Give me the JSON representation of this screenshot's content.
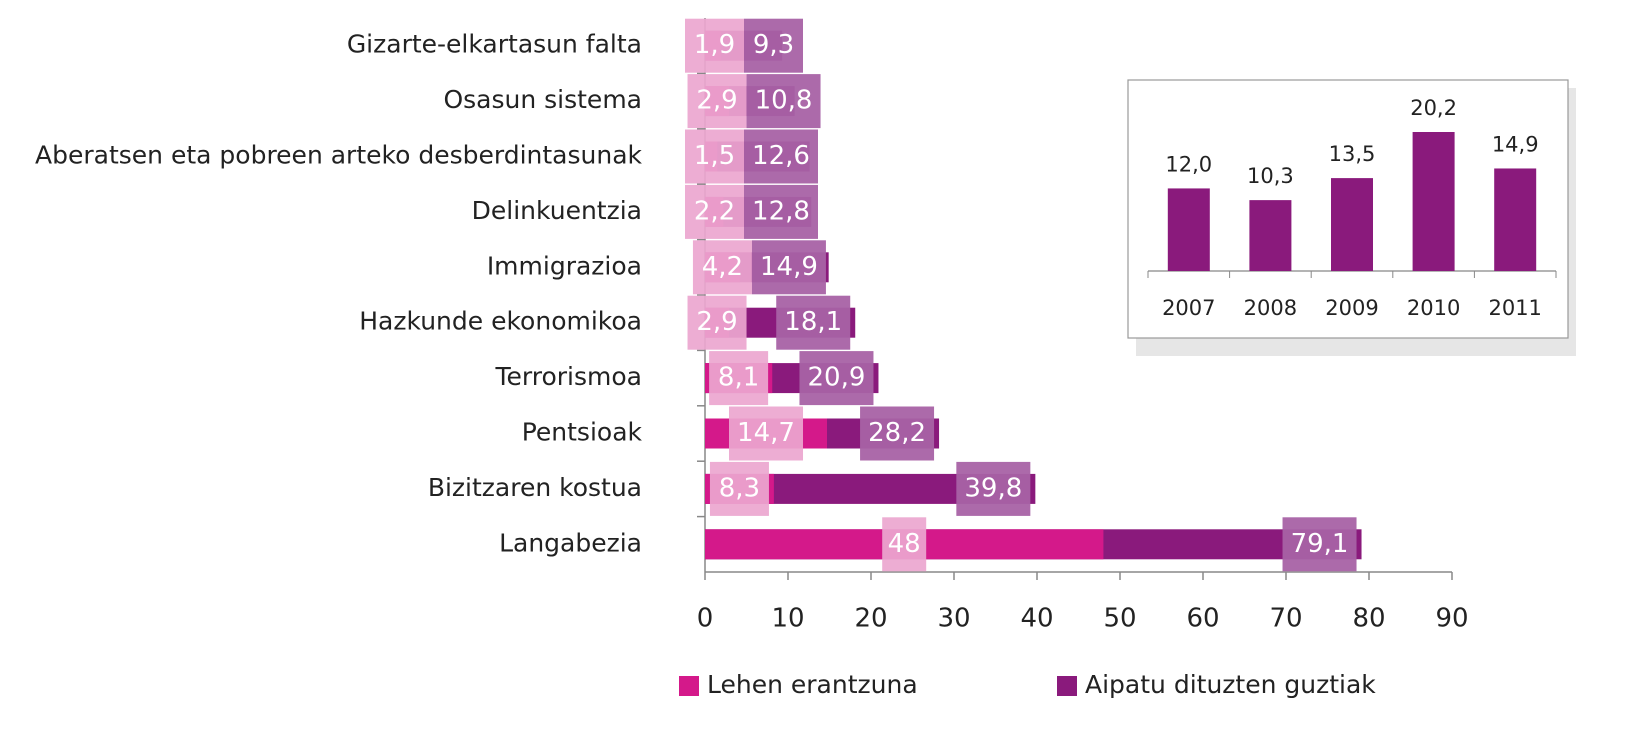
{
  "chart_data": [
    {
      "type": "bar",
      "orientation": "horizontal",
      "categories": [
        "Gizarte-elkartasun falta",
        "Osasun sistema",
        "Aberatsen eta pobreen arteko desberdintasunak",
        "Delinkuentzia",
        "Immigrazioa",
        "Hazkunde ekonomikoa",
        "Terrorismoa",
        "Pentsioak",
        "Bizitzaren kostua",
        "Langabezia"
      ],
      "series": [
        {
          "name": "Lehen erantzuna",
          "color": "#d4198a",
          "values": [
            1.9,
            2.9,
            1.5,
            2.2,
            4.2,
            2.9,
            8.1,
            14.7,
            8.3,
            48
          ],
          "value_labels": [
            "1,9",
            "2,9",
            "1,5",
            "2,2",
            "4,2",
            "2,9",
            "8,1",
            "14,7",
            "8,3",
            "48"
          ]
        },
        {
          "name": "Aipatu dituzten guztiak",
          "color": "#8a1a7c",
          "values": [
            9.3,
            10.8,
            12.6,
            12.8,
            14.9,
            18.1,
            20.9,
            28.2,
            39.8,
            79.1
          ],
          "value_labels": [
            "9,3",
            "10,8",
            "12,6",
            "12,8",
            "14,9",
            "18,1",
            "20,9",
            "28,2",
            "39,8",
            "79,1"
          ]
        }
      ],
      "xlim": [
        0,
        90
      ],
      "xticks": [
        0,
        10,
        20,
        30,
        40,
        50,
        60,
        70,
        80,
        90
      ],
      "legend": "bottom"
    },
    {
      "type": "bar",
      "categories": [
        "2007",
        "2008",
        "2009",
        "2010",
        "2011"
      ],
      "values": [
        12.0,
        10.3,
        13.5,
        20.2,
        14.9
      ],
      "value_labels": [
        "12,0",
        "10,3",
        "13,5",
        "20,2",
        "14,9"
      ],
      "color": "#8a1a7c"
    }
  ]
}
